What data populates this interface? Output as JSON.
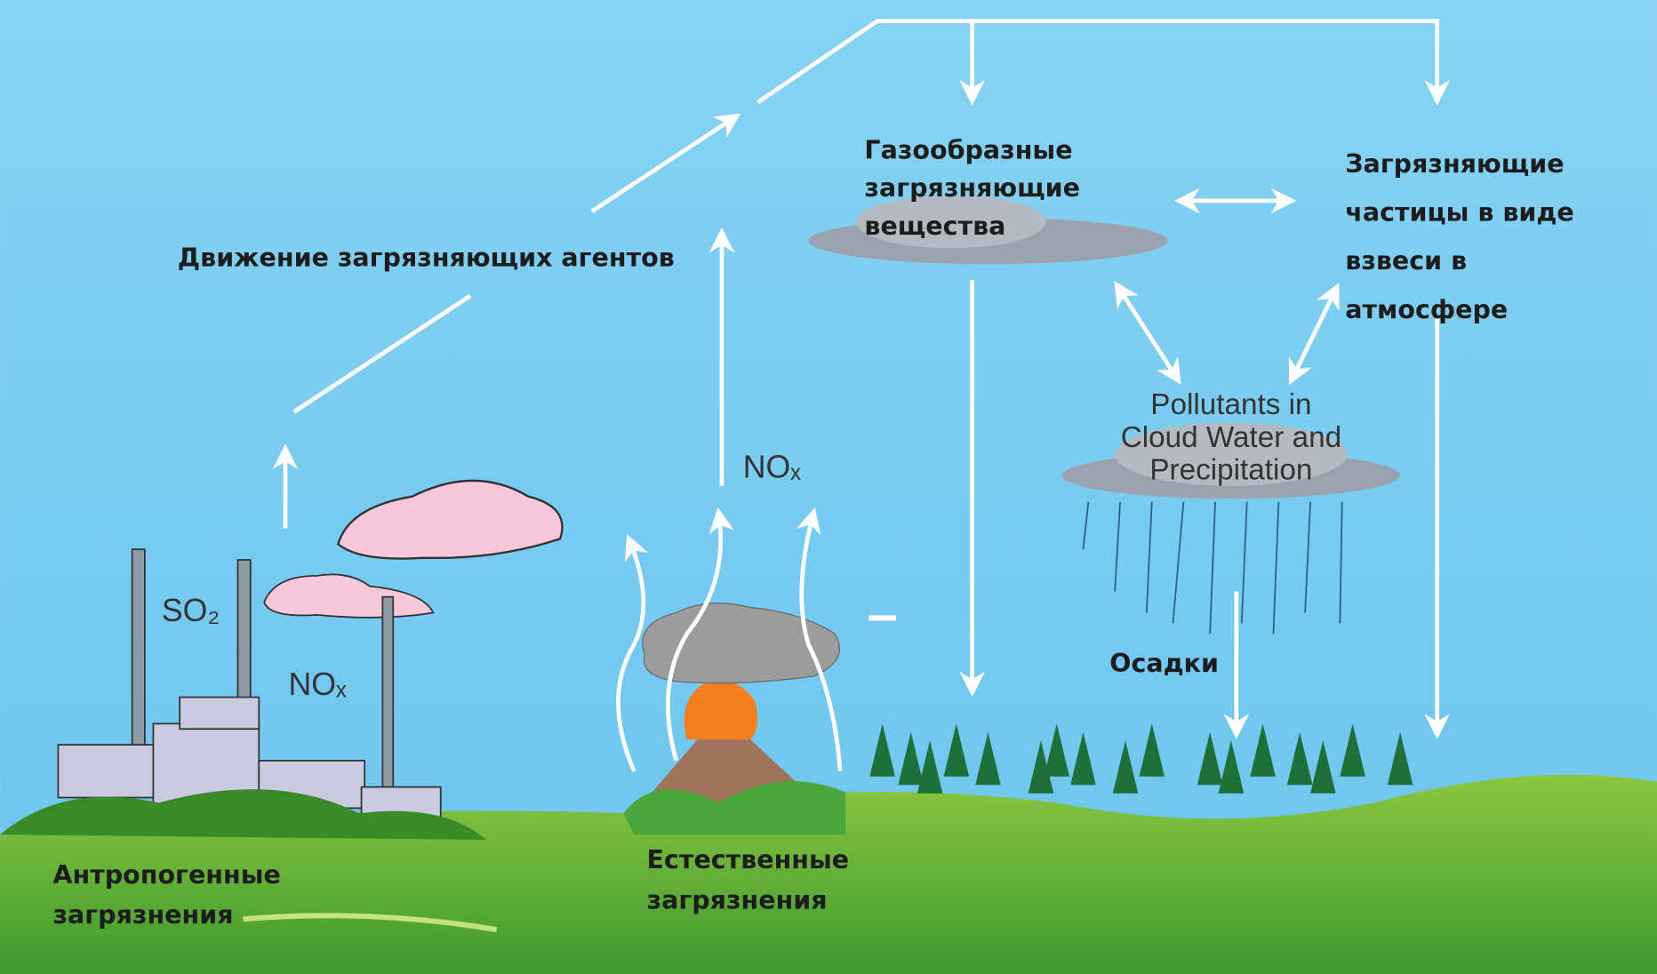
{
  "labels": {
    "movement": "Движение загрязняющих агентов",
    "gaseous": [
      "Газообразные",
      "загрязняющие",
      "вещества"
    ],
    "particles": [
      "Загрязняющие",
      "частицы в виде",
      "взвеси в",
      "атмосфере"
    ],
    "cloud_water": [
      "Pollutants in",
      "Cloud Water and",
      "Precipitation"
    ],
    "precipitation": "Осадки",
    "anthropogenic": [
      "Антропогенные",
      "загрязнения"
    ],
    "natural": [
      "Естественные",
      "загрязнения"
    ],
    "so2": "SO₂",
    "nox_factory": "NOₓ",
    "nox_volcano": "NOₓ"
  }
}
